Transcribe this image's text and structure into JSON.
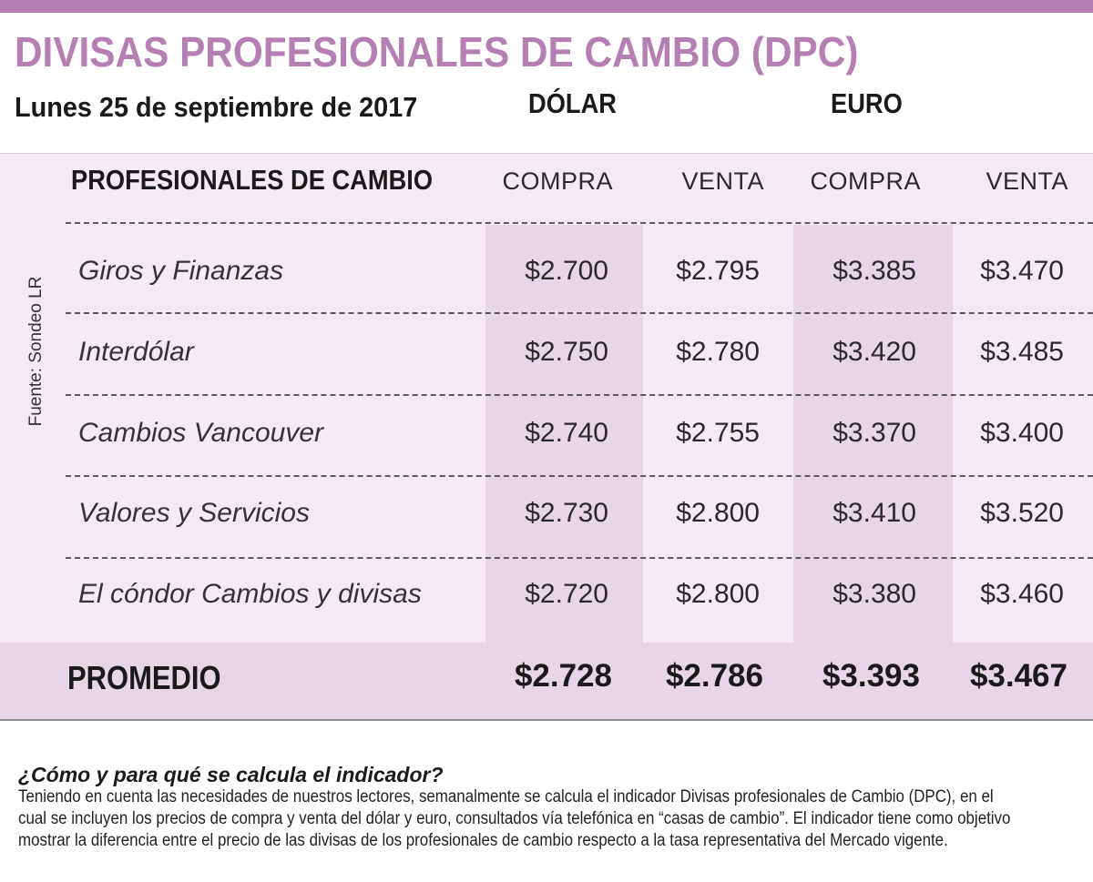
{
  "title": "DIVISAS PROFESIONALES DE CAMBIO (DPC)",
  "date": "Lunes 25 de septiembre de 2017",
  "currencies": {
    "dolar": "DÓLAR",
    "euro": "EURO"
  },
  "source": "Fuente: Sondeo LR",
  "table": {
    "header_label": "PROFESIONALES DE CAMBIO",
    "columns": [
      "COMPRA",
      "VENTA",
      "COMPRA",
      "VENTA"
    ],
    "rows": [
      {
        "name": "Giros y Finanzas",
        "values": [
          "$2.700",
          "$2.795",
          "$3.385",
          "$3.470"
        ]
      },
      {
        "name": "Interdólar",
        "values": [
          "$2.750",
          "$2.780",
          "$3.420",
          "$3.485"
        ]
      },
      {
        "name": "Cambios Vancouver",
        "values": [
          "$2.740",
          "$2.755",
          "$3.370",
          "$3.400"
        ]
      },
      {
        "name": "Valores y Servicios",
        "values": [
          "$2.730",
          "$2.800",
          "$3.410",
          "$3.520"
        ]
      },
      {
        "name": "El cóndor Cambios y divisas",
        "values": [
          "$2.720",
          "$2.800",
          "$3.380",
          "$3.460"
        ]
      }
    ],
    "average": {
      "label": "PROMEDIO",
      "values": [
        "$2.728",
        "$2.786",
        "$3.393",
        "$3.467"
      ]
    }
  },
  "note": {
    "question": "¿Cómo y para qué se calcula el indicador?",
    "text": "Teniendo en cuenta las necesidades de nuestros lectores, semanalmente se calcula el indicador Divisas profesionales de Cambio (DPC), en el cual se incluyen los precios de compra y venta del dólar y euro, consultados vía telefónica en  “casas de cambio”. El indicador tiene como objetivo mostrar la diferencia entre el precio de las divisas de los profesionales de  cambio respecto a la tasa representativa del Mercado vigente."
  },
  "colors": {
    "accent": "#b67fb4",
    "table_bg": "#f3eaf3",
    "shade": "#e6d6e6"
  }
}
